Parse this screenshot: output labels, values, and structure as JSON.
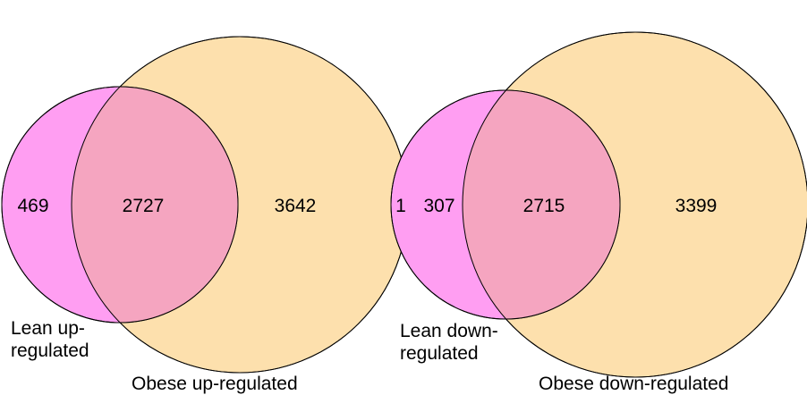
{
  "colors": {
    "lean_fill": "#ff9ef2",
    "obese_fill": "#fde0ad",
    "overlap_fill": "#f5a5c0",
    "outline": "#000000"
  },
  "venns": [
    {
      "lean_label": [
        "Lean up-",
        "regulated"
      ],
      "obese_label": "Obese up-regulated",
      "counts": {
        "lean_only": "469",
        "both": "2727",
        "obese_only": "3642"
      }
    },
    {
      "lean_label": [
        "Lean down-",
        "regulated"
      ],
      "obese_label": "Obese down-regulated",
      "counts": {
        "lean_only": "307",
        "both": "2715",
        "obese_only": "3399"
      }
    }
  ],
  "shared_between_obese": "1"
}
